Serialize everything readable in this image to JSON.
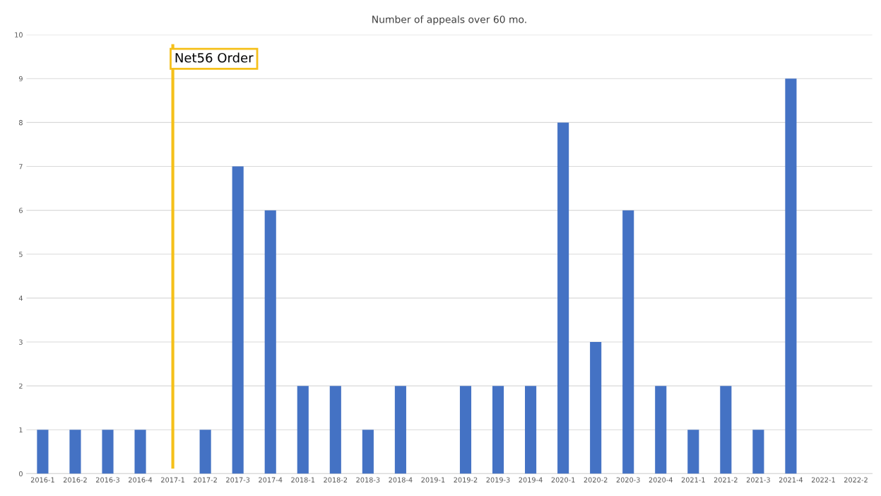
{
  "chart_data": {
    "type": "bar",
    "title": "Number of appeals over 60 mo.",
    "categories": [
      "2016-1",
      "2016-2",
      "2016-3",
      "2016-4",
      "2017-1",
      "2017-2",
      "2017-3",
      "2017-4",
      "2018-1",
      "2018-2",
      "2018-3",
      "2018-4",
      "2019-1",
      "2019-2",
      "2019-3",
      "2019-4",
      "2020-1",
      "2020-2",
      "2020-3",
      "2020-4",
      "2021-1",
      "2021-2",
      "2021-3",
      "2021-4",
      "2022-1",
      "2022-2"
    ],
    "values": [
      1,
      1,
      1,
      1,
      0,
      1,
      7,
      6,
      2,
      2,
      1,
      2,
      0,
      2,
      2,
      2,
      8,
      3,
      6,
      2,
      1,
      2,
      1,
      9,
      0,
      0
    ],
    "color": "#4472c4",
    "ylim": [
      0,
      10
    ],
    "yticks": [
      0,
      1,
      2,
      3,
      4,
      5,
      6,
      7,
      8,
      9,
      10
    ],
    "grid": "y",
    "ref_lines": [
      {
        "axis": "x",
        "value": "2017-1",
        "label": "Net56 Order",
        "color": "#f5c01a"
      }
    ]
  }
}
